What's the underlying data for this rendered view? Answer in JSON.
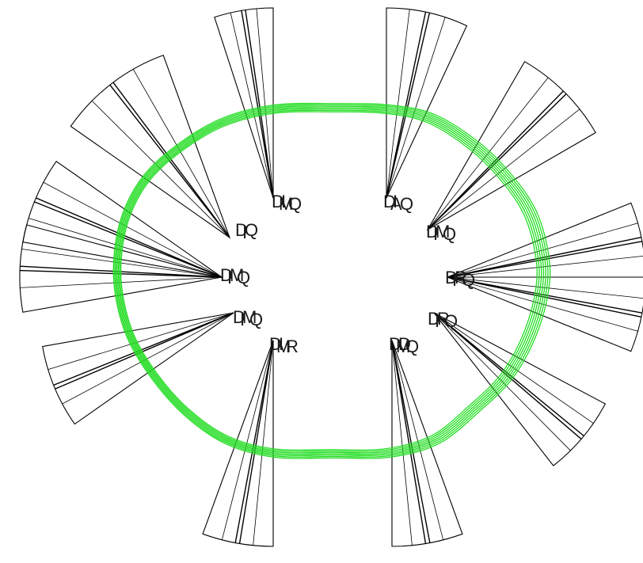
{
  "diagram": {
    "colors": {
      "background": "#ffffff",
      "outline": "#000000",
      "ring": "#22dd22",
      "label": "#1a1a1a"
    },
    "sector_count": 12,
    "ring_trace_count": 7,
    "groups": [
      {
        "id": "upper-left",
        "labels": [
          "D",
          "M",
          "I",
          "Q"
        ]
      },
      {
        "id": "left-upper",
        "labels": [
          "D",
          "I",
          "Q"
        ]
      },
      {
        "id": "left",
        "labels": [
          "D",
          "I",
          "M",
          "Q"
        ]
      },
      {
        "id": "left-lower",
        "labels": [
          "D",
          "I",
          "M",
          "Q"
        ]
      },
      {
        "id": "lower-left",
        "labels": [
          "D",
          "M",
          "I",
          "R"
        ]
      },
      {
        "id": "upper-right",
        "labels": [
          "D",
          "A",
          "I",
          "Q"
        ]
      },
      {
        "id": "right-upper",
        "labels": [
          "D",
          "I",
          "M",
          "Q"
        ]
      },
      {
        "id": "right",
        "labels": [
          "D",
          "I",
          "R",
          "Q"
        ]
      },
      {
        "id": "right-lower",
        "labels": [
          "D",
          "I",
          "R",
          "Q"
        ]
      },
      {
        "id": "lower-right",
        "labels": [
          "D",
          "M",
          "D",
          "Q"
        ]
      }
    ]
  }
}
